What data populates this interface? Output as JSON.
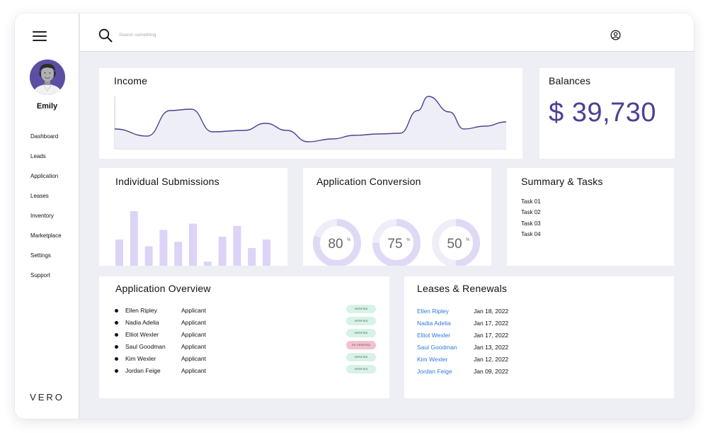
{
  "app": {
    "logo": "VERO"
  },
  "user": {
    "name": "Emily"
  },
  "nav": {
    "items": [
      {
        "label": "Dashboard"
      },
      {
        "label": "Leads"
      },
      {
        "label": "Application"
      },
      {
        "label": "Leases"
      },
      {
        "label": "Inventory"
      },
      {
        "label": "Marketplace"
      },
      {
        "label": "Settings"
      },
      {
        "label": "Support"
      }
    ]
  },
  "search": {
    "placeholder": "Search something"
  },
  "income": {
    "title": "Income",
    "line_color": "#4b4192",
    "fill_color": "#eeeef7"
  },
  "balances": {
    "title": "Balances",
    "value": "$ 39,730"
  },
  "submissions": {
    "title": "Individual Submissions",
    "bar_color": "#dcd3f7",
    "values": [
      0.5,
      1.0,
      0.38,
      0.67,
      0.46,
      0.78,
      0.11,
      0.55,
      0.74,
      0.35,
      0.5
    ]
  },
  "conversion": {
    "title": "Application Conversion",
    "track_color": "#f0edf8",
    "fill_color": "#e0d9f6",
    "items": [
      {
        "value": "80",
        "unit": "%",
        "fraction": 0.8
      },
      {
        "value": "75",
        "unit": "%",
        "fraction": 0.75
      },
      {
        "value": "50",
        "unit": "%",
        "fraction": 0.5
      }
    ]
  },
  "summary": {
    "title": "Summary & Tasks",
    "tasks": [
      "Task 01",
      "Task 02",
      "Task 03",
      "Task 04"
    ]
  },
  "overview": {
    "title": "Application Overview",
    "rows": [
      {
        "name": "Ellen Ripley",
        "role": "Applicant",
        "status": "VERIFIED",
        "status_color": "#d7f2e6"
      },
      {
        "name": "Nadia Adelia",
        "role": "Applicant",
        "status": "VERIFIED",
        "status_color": "#d7f2e6"
      },
      {
        "name": "Elliot Wexler",
        "role": "Applicant",
        "status": "VERIFIED",
        "status_color": "#d7f2e6"
      },
      {
        "name": "Saul Goodman",
        "role": "Applicant",
        "status": "0% VERIFIED",
        "status_color": "#f2c0cf"
      },
      {
        "name": "Kim Wexler",
        "role": "Applicant",
        "status": "VERIFIED",
        "status_color": "#d7f2e6"
      },
      {
        "name": "Jordan Feige",
        "role": "Applicant",
        "status": "VERIFIED",
        "status_color": "#d7f2e6"
      }
    ]
  },
  "leases": {
    "title": "Leases & Renewals",
    "rows": [
      {
        "name": "Ellen Ripley",
        "date": "Jan 18, 2022"
      },
      {
        "name": "Nadia Adelia",
        "date": "Jan 17, 2022"
      },
      {
        "name": "Elliot Wexler",
        "date": "Jan 17, 2022"
      },
      {
        "name": "Saul Goodman",
        "date": "Jan 13, 2022"
      },
      {
        "name": "Kim Wexler",
        "date": "Jan 12, 2022"
      },
      {
        "name": "Jordan Feige",
        "date": "Jan 09, 2022"
      }
    ]
  }
}
